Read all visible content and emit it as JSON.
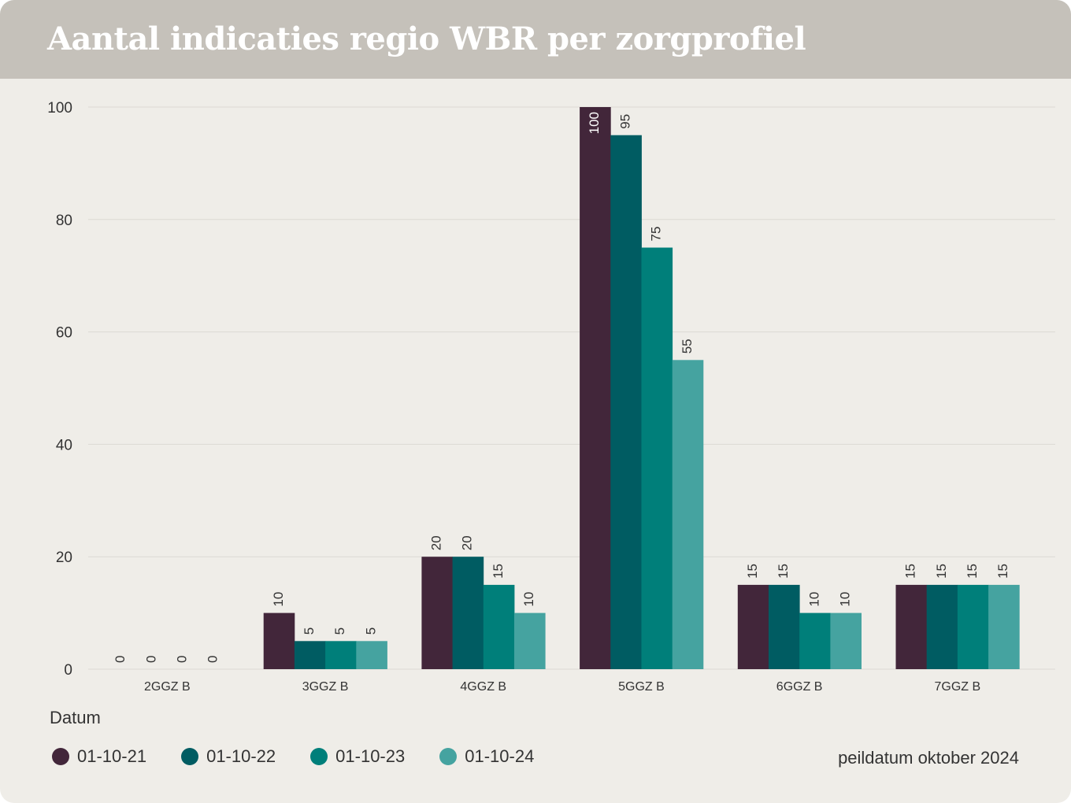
{
  "header": {
    "title": "Aantal indicaties regio WBR per zorgprofiel"
  },
  "legend": {
    "title": "Datum",
    "items": [
      {
        "label": "01-10-21",
        "color": "#42263a"
      },
      {
        "label": "01-10-22",
        "color": "#005c62"
      },
      {
        "label": "01-10-23",
        "color": "#007f7a"
      },
      {
        "label": "01-10-24",
        "color": "#45a3a0"
      }
    ]
  },
  "footnote": "peildatum oktober 2024",
  "chart_data": {
    "type": "bar",
    "title": "Aantal indicaties regio WBR per zorgprofiel",
    "xlabel": "",
    "ylabel": "",
    "ylim": [
      0,
      100
    ],
    "yticks": [
      0,
      20,
      40,
      60,
      80,
      100
    ],
    "grid": true,
    "legend_position": "bottom-left",
    "categories": [
      "2GGZ B",
      "3GGZ B",
      "4GGZ B",
      "5GGZ B",
      "6GGZ B",
      "7GGZ B"
    ],
    "series": [
      {
        "name": "01-10-21",
        "color": "#42263a",
        "values": [
          0,
          10,
          20,
          100,
          15,
          15
        ]
      },
      {
        "name": "01-10-22",
        "color": "#005c62",
        "values": [
          0,
          5,
          20,
          95,
          15,
          15
        ]
      },
      {
        "name": "01-10-23",
        "color": "#007f7a",
        "values": [
          0,
          5,
          15,
          75,
          10,
          15
        ]
      },
      {
        "name": "01-10-24",
        "color": "#45a3a0",
        "values": [
          0,
          5,
          10,
          55,
          10,
          15
        ]
      }
    ]
  }
}
